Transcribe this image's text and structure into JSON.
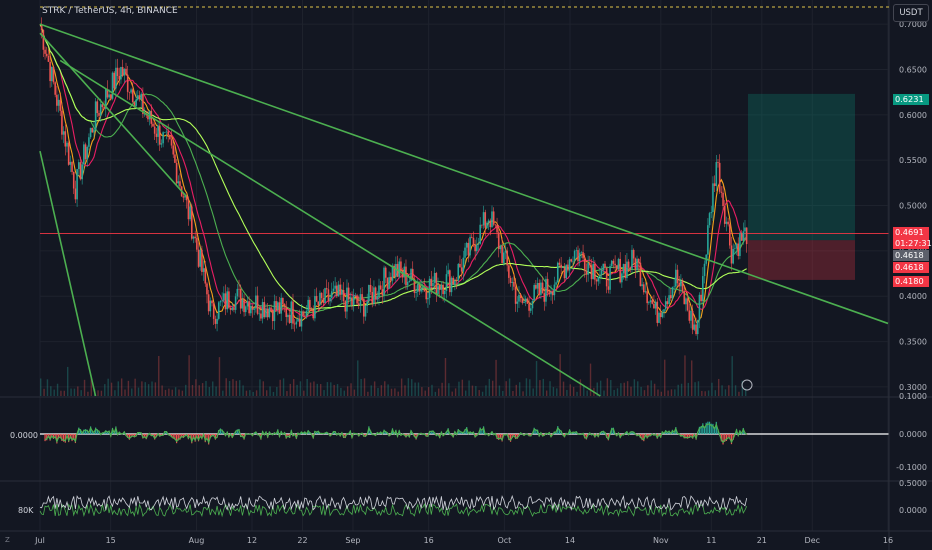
{
  "header": {
    "title": "STRK / TetherUS, 4h, BINANCE",
    "currency_button": "USDT"
  },
  "price_axis": {
    "ticks": [
      "0.7000",
      "0.6500",
      "0.6000",
      "0.5500",
      "0.5000",
      "0.4500",
      "0.4000",
      "0.3500",
      "0.3000"
    ]
  },
  "price_tags": {
    "target": {
      "label": "0.6231",
      "color": "#089981"
    },
    "last_price": {
      "label": "0.4691",
      "color": "#f23645"
    },
    "countdown": {
      "label": "01:27:31",
      "color": "#f23645"
    },
    "ma_value": {
      "label": "0.4618",
      "color": "#787b86"
    },
    "entry": {
      "label": "0.4618",
      "color": "#f23645"
    },
    "stop": {
      "label": "0.4180",
      "color": "#f23645"
    }
  },
  "oscillator": {
    "left_label": "0.0000",
    "ticks": [
      "0.1000",
      "0.0000",
      "-0.1000"
    ]
  },
  "volume_pane": {
    "left_label": "80K",
    "ticks": [
      "0.5000",
      "0.0000"
    ]
  },
  "time_axis": {
    "labels": [
      "Jul",
      "15",
      "Aug",
      "12",
      "22",
      "Sep",
      "16",
      "Oct",
      "14",
      "Nov",
      "11",
      "21",
      "Dec",
      "16"
    ]
  },
  "chart_data": {
    "type": "candlestick",
    "title": "STRK / TetherUS, 4h, BINANCE",
    "timeframe": "4h",
    "exchange": "BINANCE",
    "ylim": [
      0.29,
      0.72
    ],
    "x_range": [
      "2024-07-01",
      "2024-12-16"
    ],
    "close_series": [
      {
        "date": "2024-07-01",
        "close": 0.7
      },
      {
        "date": "2024-07-05",
        "close": 0.6
      },
      {
        "date": "2024-07-08",
        "close": 0.52
      },
      {
        "date": "2024-07-12",
        "close": 0.6
      },
      {
        "date": "2024-07-17",
        "close": 0.65
      },
      {
        "date": "2024-07-22",
        "close": 0.6
      },
      {
        "date": "2024-07-27",
        "close": 0.56
      },
      {
        "date": "2024-07-31",
        "close": 0.48
      },
      {
        "date": "2024-08-04",
        "close": 0.38
      },
      {
        "date": "2024-08-08",
        "close": 0.4
      },
      {
        "date": "2024-08-14",
        "close": 0.39
      },
      {
        "date": "2024-08-22",
        "close": 0.38
      },
      {
        "date": "2024-08-28",
        "close": 0.4
      },
      {
        "date": "2024-09-03",
        "close": 0.39
      },
      {
        "date": "2024-09-09",
        "close": 0.43
      },
      {
        "date": "2024-09-15",
        "close": 0.41
      },
      {
        "date": "2024-09-21",
        "close": 0.42
      },
      {
        "date": "2024-09-28",
        "close": 0.49
      },
      {
        "date": "2024-10-04",
        "close": 0.39
      },
      {
        "date": "2024-10-10",
        "close": 0.41
      },
      {
        "date": "2024-10-15",
        "close": 0.45
      },
      {
        "date": "2024-10-21",
        "close": 0.42
      },
      {
        "date": "2024-10-27",
        "close": 0.44
      },
      {
        "date": "2024-10-31",
        "close": 0.38
      },
      {
        "date": "2024-11-04",
        "close": 0.42
      },
      {
        "date": "2024-11-08",
        "close": 0.36
      },
      {
        "date": "2024-11-12",
        "close": 0.55
      },
      {
        "date": "2024-11-15",
        "close": 0.45
      },
      {
        "date": "2024-11-18",
        "close": 0.47
      }
    ],
    "trendlines": [
      {
        "from": {
          "date": "2024-07-01",
          "price": 0.7
        },
        "to": {
          "date": "2024-12-16",
          "price": 0.37
        }
      },
      {
        "from": {
          "date": "2024-07-05",
          "price": 0.66
        },
        "to": {
          "date": "2024-10-20",
          "price": 0.29
        }
      },
      {
        "from": {
          "date": "2024-07-01",
          "price": 0.56
        },
        "to": {
          "date": "2024-07-12",
          "price": 0.29
        }
      },
      {
        "from": {
          "date": "2024-07-01",
          "price": 0.69
        },
        "to": {
          "date": "2024-07-30",
          "price": 0.51
        }
      }
    ],
    "long_position": {
      "entry": 0.4618,
      "target": 0.6231,
      "stop": 0.418,
      "last_price": 0.4691
    },
    "legend": "none",
    "grid": true
  }
}
